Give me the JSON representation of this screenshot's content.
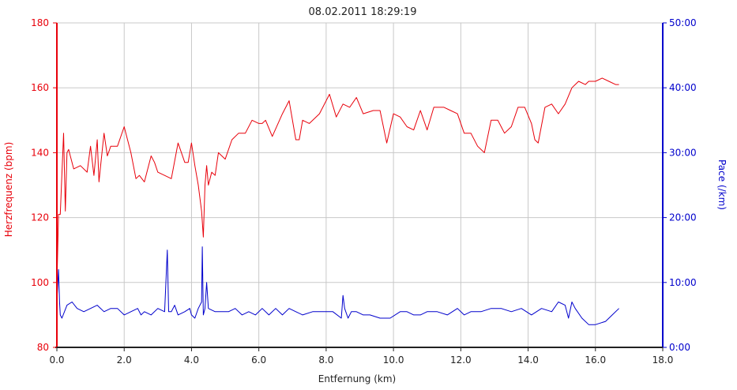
{
  "chart_data": {
    "type": "line",
    "title": "08.02.2011 18:29:19",
    "xlabel": "Entfernung (km)",
    "ylabel_left": "Herzfrequenz (bpm)",
    "ylabel_right": "Pace (/km)",
    "xlim": [
      0,
      18
    ],
    "ylim_left": [
      80,
      180
    ],
    "ylim_right": [
      0,
      50
    ],
    "grid": true,
    "x_ticks": [
      "0.0",
      "2.0",
      "4.0",
      "6.0",
      "8.0",
      "10.0",
      "12.0",
      "14.0",
      "16.0",
      "18.0"
    ],
    "y_left_ticks": [
      "80",
      "100",
      "120",
      "140",
      "160",
      "180"
    ],
    "y_right_ticks": [
      "0:00",
      "10:00",
      "20:00",
      "30:00",
      "40:00",
      "50:00"
    ],
    "colors": {
      "heart": "#e8000a",
      "pace": "#0000cc",
      "grid": "#c8c8c8"
    },
    "series": [
      {
        "name": "Herzfrequenz (bpm)",
        "axis": "left",
        "x": [
          0.0,
          0.05,
          0.1,
          0.2,
          0.25,
          0.3,
          0.35,
          0.4,
          0.5,
          0.7,
          0.9,
          1.0,
          1.1,
          1.2,
          1.25,
          1.3,
          1.4,
          1.5,
          1.6,
          1.7,
          1.8,
          2.0,
          2.2,
          2.35,
          2.45,
          2.6,
          2.8,
          2.9,
          3.0,
          3.2,
          3.4,
          3.6,
          3.8,
          3.9,
          4.0,
          4.1,
          4.2,
          4.3,
          4.35,
          4.4,
          4.45,
          4.5,
          4.6,
          4.7,
          4.8,
          5.0,
          5.2,
          5.4,
          5.6,
          5.8,
          6.0,
          6.1,
          6.2,
          6.4,
          6.7,
          6.9,
          7.1,
          7.2,
          7.3,
          7.5,
          7.8,
          8.1,
          8.3,
          8.5,
          8.7,
          8.9,
          9.1,
          9.4,
          9.6,
          9.8,
          10.0,
          10.2,
          10.4,
          10.6,
          10.8,
          11.0,
          11.2,
          11.5,
          11.7,
          11.9,
          12.1,
          12.3,
          12.5,
          12.7,
          12.9,
          13.1,
          13.3,
          13.5,
          13.7,
          13.9,
          14.1,
          14.2,
          14.3,
          14.5,
          14.7,
          14.9,
          15.1,
          15.3,
          15.4,
          15.5,
          15.7,
          15.8,
          16.0,
          16.2,
          16.4,
          16.6,
          16.7
        ],
        "values": [
          99,
          121,
          121,
          146,
          122,
          140,
          141,
          139,
          135,
          136,
          134,
          142,
          133,
          144,
          131,
          136,
          146,
          139,
          142,
          142,
          142,
          148,
          140,
          132,
          133,
          131,
          139,
          137,
          134,
          133,
          132,
          143,
          137,
          137,
          143,
          136,
          130,
          122,
          114,
          130,
          136,
          130,
          134,
          133,
          140,
          138,
          144,
          146,
          146,
          150,
          149,
          149,
          150,
          145,
          152,
          156,
          144,
          144,
          150,
          149,
          152,
          158,
          151,
          155,
          154,
          157,
          152,
          153,
          153,
          143,
          152,
          151,
          148,
          147,
          153,
          147,
          154,
          154,
          153,
          152,
          146,
          146,
          142,
          140,
          150,
          150,
          146,
          148,
          154,
          154,
          149,
          144,
          143,
          154,
          155,
          152,
          155,
          160,
          161,
          162,
          161,
          162,
          162,
          163,
          162,
          161,
          161
        ]
      },
      {
        "name": "Pace (/km)",
        "axis": "right",
        "x": [
          0.0,
          0.05,
          0.08,
          0.1,
          0.15,
          0.3,
          0.45,
          0.6,
          0.8,
          1.0,
          1.2,
          1.4,
          1.6,
          1.8,
          2.0,
          2.2,
          2.4,
          2.5,
          2.6,
          2.8,
          3.0,
          3.2,
          3.28,
          3.32,
          3.4,
          3.5,
          3.6,
          3.8,
          3.95,
          4.0,
          4.1,
          4.2,
          4.3,
          4.32,
          4.35,
          4.4,
          4.45,
          4.5,
          4.7,
          4.9,
          5.1,
          5.3,
          5.5,
          5.7,
          5.9,
          6.1,
          6.3,
          6.5,
          6.7,
          6.9,
          7.1,
          7.3,
          7.6,
          7.9,
          8.2,
          8.45,
          8.5,
          8.55,
          8.65,
          8.75,
          8.9,
          9.1,
          9.3,
          9.6,
          9.9,
          10.2,
          10.4,
          10.6,
          10.8,
          11.0,
          11.3,
          11.6,
          11.9,
          12.1,
          12.3,
          12.6,
          12.9,
          13.2,
          13.5,
          13.8,
          14.1,
          14.4,
          14.7,
          14.9,
          15.1,
          15.2,
          15.3,
          15.4,
          15.6,
          15.8,
          16.0,
          16.3,
          16.5,
          16.7
        ],
        "values": [
          7,
          12,
          7,
          5,
          4.5,
          6.5,
          7,
          6,
          5.5,
          6,
          6.5,
          5.5,
          6,
          6,
          5,
          5.5,
          6,
          5,
          5.5,
          5,
          6,
          5.5,
          15,
          5.5,
          5.5,
          6.5,
          5,
          5.5,
          6,
          5,
          4.5,
          6,
          7,
          15.5,
          5,
          6,
          10,
          6,
          5.5,
          5.5,
          5.5,
          6,
          5,
          5.5,
          5,
          6,
          5,
          6,
          5,
          6,
          5.5,
          5,
          5.5,
          5.5,
          5.5,
          4.5,
          8,
          6,
          4.5,
          5.5,
          5.5,
          5,
          5,
          4.5,
          4.5,
          5.5,
          5.5,
          5,
          5,
          5.5,
          5.5,
          5,
          6,
          5,
          5.5,
          5.5,
          6,
          6,
          5.5,
          6,
          5,
          6,
          5.5,
          7,
          6.5,
          4.5,
          7,
          6,
          4.5,
          3.5,
          3.5,
          4,
          5,
          6
        ]
      }
    ]
  }
}
